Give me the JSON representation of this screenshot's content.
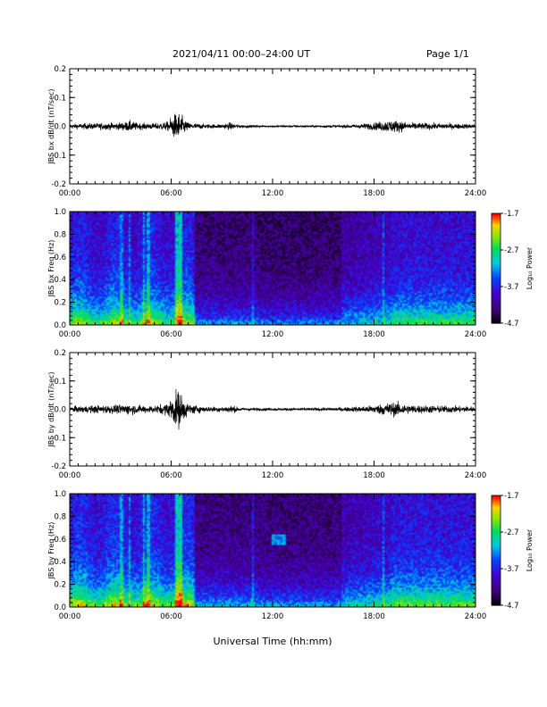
{
  "header": {
    "title": "2021/04/11  00:00–24:00 UT",
    "page": "Page 1/1"
  },
  "xlabel": "Universal Time (hh:mm)",
  "x_ticks": [
    "00:00",
    "06:00",
    "12:00",
    "18:00",
    "24:00"
  ],
  "chart_data": [
    {
      "type": "line",
      "ylabel": "JBS bx dB/dt (nT/sec)",
      "xlim": [
        0,
        24
      ],
      "ylim": [
        -0.2,
        0.2
      ],
      "y_ticks": [
        "0.2",
        "0.1",
        "0.0",
        "-0.1",
        "-0.2"
      ],
      "envelope": [
        [
          0,
          0.012
        ],
        [
          1,
          0.016
        ],
        [
          2,
          0.018
        ],
        [
          3,
          0.02
        ],
        [
          3.6,
          0.03
        ],
        [
          4,
          0.018
        ],
        [
          5,
          0.016
        ],
        [
          5.8,
          0.025
        ],
        [
          6.1,
          0.06
        ],
        [
          6.4,
          0.08
        ],
        [
          6.7,
          0.05
        ],
        [
          7,
          0.02
        ],
        [
          8,
          0.012
        ],
        [
          9,
          0.012
        ],
        [
          9.5,
          0.02
        ],
        [
          10,
          0.008
        ],
        [
          11,
          0.006
        ],
        [
          12,
          0.005
        ],
        [
          14,
          0.006
        ],
        [
          16,
          0.007
        ],
        [
          17,
          0.012
        ],
        [
          18,
          0.02
        ],
        [
          19,
          0.035
        ],
        [
          19.6,
          0.03
        ],
        [
          20,
          0.02
        ],
        [
          21,
          0.018
        ],
        [
          22,
          0.016
        ],
        [
          24,
          0.012
        ]
      ]
    },
    {
      "type": "heatmap",
      "ylabel": "JBS bx Freq (Hz)",
      "colorbar_label": "Log₁₀ Power",
      "xlim": [
        0,
        24
      ],
      "ylim": [
        0,
        1
      ],
      "y_ticks": [
        "1.0",
        "0.8",
        "0.6",
        "0.4",
        "0.2",
        "0.0"
      ],
      "cbar_ticks": [
        "-1.7",
        "-2.7",
        "-3.7",
        "-4.7"
      ],
      "clim": [
        -4.7,
        -1.7
      ]
    },
    {
      "type": "line",
      "ylabel": "JBS by dB/dt (nT/sec)",
      "xlim": [
        0,
        24
      ],
      "ylim": [
        -0.2,
        0.2
      ],
      "y_ticks": [
        "0.2",
        "0.1",
        "0.0",
        "-0.1",
        "-0.2"
      ],
      "envelope": [
        [
          0,
          0.015
        ],
        [
          1,
          0.02
        ],
        [
          2,
          0.022
        ],
        [
          3,
          0.025
        ],
        [
          3.6,
          0.03
        ],
        [
          4,
          0.022
        ],
        [
          5,
          0.02
        ],
        [
          5.8,
          0.035
        ],
        [
          6.1,
          0.08
        ],
        [
          6.4,
          0.11
        ],
        [
          6.7,
          0.07
        ],
        [
          7,
          0.03
        ],
        [
          8,
          0.015
        ],
        [
          9,
          0.015
        ],
        [
          9.6,
          0.022
        ],
        [
          10,
          0.01
        ],
        [
          11,
          0.008
        ],
        [
          12,
          0.007
        ],
        [
          14,
          0.008
        ],
        [
          16,
          0.01
        ],
        [
          17,
          0.015
        ],
        [
          18,
          0.022
        ],
        [
          19,
          0.04
        ],
        [
          19.6,
          0.035
        ],
        [
          20,
          0.025
        ],
        [
          21,
          0.022
        ],
        [
          22,
          0.02
        ],
        [
          24,
          0.016
        ]
      ]
    },
    {
      "type": "heatmap",
      "ylabel": "JBS by Freq (Hz)",
      "colorbar_label": "Log₁₀ Power",
      "xlim": [
        0,
        24
      ],
      "ylim": [
        0,
        1
      ],
      "y_ticks": [
        "1.0",
        "0.8",
        "0.6",
        "0.4",
        "0.2",
        "0.0"
      ],
      "cbar_ticks": [
        "-1.7",
        "-2.7",
        "-3.7",
        "-4.7"
      ],
      "clim": [
        -4.7,
        -1.7
      ]
    }
  ]
}
